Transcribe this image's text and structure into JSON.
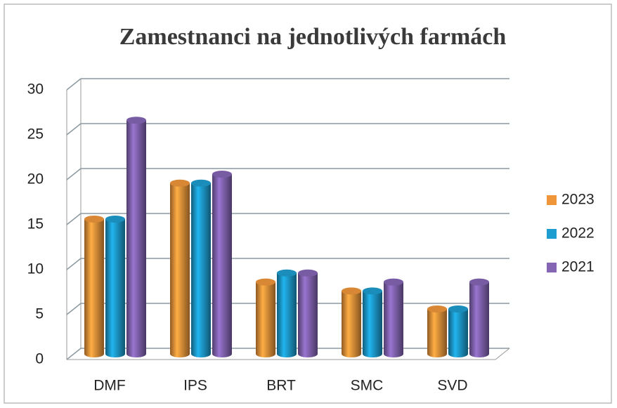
{
  "chart_data": {
    "type": "bar",
    "title": "Zamestnanci na jednotlivých farmách",
    "categories": [
      "DMF",
      "IPS",
      "BRT",
      "SMC",
      "SVD"
    ],
    "series": [
      {
        "name": "2023",
        "color": "#f0963a",
        "values": [
          15,
          19,
          8,
          7,
          5
        ]
      },
      {
        "name": "2022",
        "color": "#1d9dd0",
        "values": [
          15,
          19,
          9,
          7,
          5
        ]
      },
      {
        "name": "2021",
        "color": "#8566b5",
        "values": [
          26,
          20,
          9,
          8,
          8
        ]
      }
    ],
    "ylim": [
      0,
      30
    ],
    "yticks": [
      0,
      5,
      10,
      15,
      20,
      25,
      30
    ],
    "grid": true,
    "legend": "right"
  }
}
